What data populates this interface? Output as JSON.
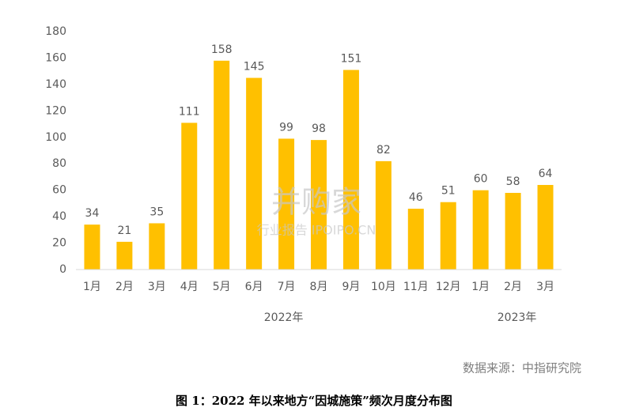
{
  "chart_data": {
    "type": "bar",
    "categories": [
      "1月",
      "2月",
      "3月",
      "4月",
      "5月",
      "6月",
      "7月",
      "8月",
      "9月",
      "10月",
      "11月",
      "12月",
      "1月",
      "2月",
      "3月"
    ],
    "values": [
      34,
      21,
      35,
      111,
      158,
      145,
      99,
      98,
      151,
      82,
      46,
      51,
      60,
      58,
      64
    ],
    "color": "#FFC000",
    "ylim": [
      0,
      180
    ],
    "yticks": [
      0,
      20,
      40,
      60,
      80,
      100,
      120,
      140,
      160,
      180
    ],
    "grid": false,
    "groups": [
      {
        "label": "2022年",
        "count": 12
      },
      {
        "label": "2023年",
        "count": 3
      }
    ],
    "source": "数据来源：中指研究院",
    "caption": "图 1：2022 年以来地方“因城施策”频次月度分布图"
  },
  "watermark": {
    "brand": "并购家",
    "site": "行业报告 IPOIPO.CN"
  }
}
